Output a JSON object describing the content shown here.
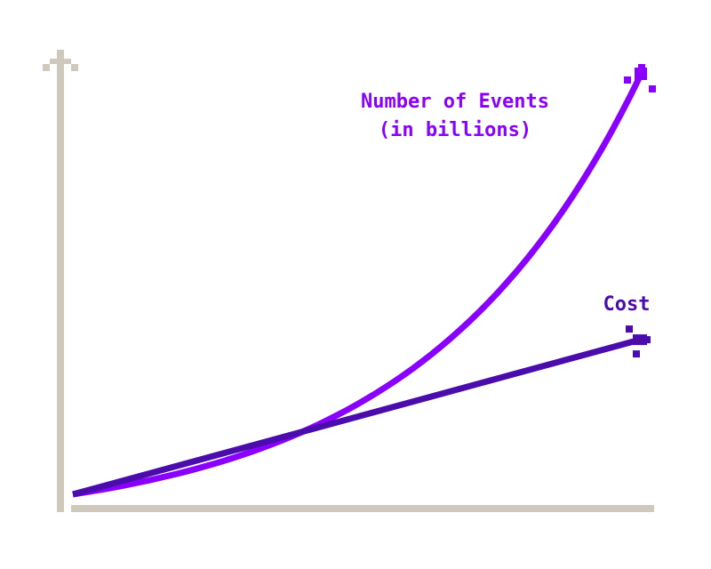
{
  "chart_data": {
    "type": "line",
    "title": "",
    "xlabel": "",
    "ylabel": "",
    "grid": false,
    "series": [
      {
        "name": "Number of Events\n(in billions)",
        "name_lines": [
          "Number of Events",
          "(in billions)"
        ],
        "color": "#8A00FF",
        "shape": "exponential",
        "points": [
          [
            0,
            0
          ],
          [
            0.2,
            0.06
          ],
          [
            0.4,
            0.16
          ],
          [
            0.6,
            0.31
          ],
          [
            0.8,
            0.55
          ],
          [
            1,
            1
          ]
        ]
      },
      {
        "name": "Cost",
        "name_lines": [
          "Cost"
        ],
        "color": "#4A0DAB",
        "shape": "linear",
        "points": [
          [
            0,
            0
          ],
          [
            1,
            0.37
          ]
        ]
      }
    ],
    "xlim": [
      0,
      1
    ],
    "ylim": [
      0,
      1
    ],
    "axis_color": "#CFC8BD",
    "axis_ticks": false
  }
}
